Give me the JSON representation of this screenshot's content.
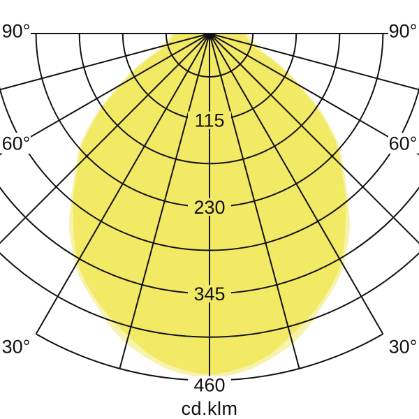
{
  "chart_data": {
    "type": "polar",
    "subtype": "photometric_light_distribution",
    "title": "",
    "unit_label": "cd.klm",
    "angle_step_deg": 15,
    "angle_labels": [
      {
        "deg": 90,
        "text": "90°"
      },
      {
        "deg": 60,
        "text": "60°"
      },
      {
        "deg": 30,
        "text": "30°"
      }
    ],
    "radial_ticks": {
      "minor_step": 57.5,
      "labeled": [
        115,
        230,
        345,
        460
      ],
      "max": 460
    },
    "series": [
      {
        "name": "distribution-outer-pale",
        "color": "#F7F2AC",
        "points_deg_cd_klm": [
          [
            90,
            50
          ],
          [
            80,
            58
          ],
          [
            71,
            75
          ],
          [
            67,
            97
          ],
          [
            63,
            121
          ],
          [
            59,
            147
          ],
          [
            56,
            174
          ],
          [
            52,
            205
          ],
          [
            49,
            229
          ],
          [
            45,
            251
          ],
          [
            42,
            271
          ],
          [
            39,
            293
          ],
          [
            36,
            317
          ],
          [
            32,
            342
          ],
          [
            29,
            362
          ],
          [
            25,
            380
          ],
          [
            22,
            393
          ],
          [
            19,
            409
          ],
          [
            15,
            426
          ],
          [
            11,
            438
          ],
          [
            7,
            449
          ],
          [
            2,
            456
          ],
          [
            0,
            456
          ]
        ]
      },
      {
        "name": "distribution-inner-bright",
        "color": "#F2E964",
        "points_deg_cd_klm": [
          [
            90,
            46
          ],
          [
            80,
            52
          ],
          [
            71,
            68
          ],
          [
            67,
            91
          ],
          [
            63,
            115
          ],
          [
            59,
            141
          ],
          [
            56,
            168
          ],
          [
            52,
            199
          ],
          [
            49,
            224
          ],
          [
            45,
            246
          ],
          [
            42,
            266
          ],
          [
            39,
            288
          ],
          [
            36,
            307
          ],
          [
            32,
            336
          ],
          [
            29,
            356
          ],
          [
            25,
            375
          ],
          [
            22,
            388
          ],
          [
            18,
            404
          ],
          [
            14,
            419
          ],
          [
            11,
            432
          ],
          [
            7,
            443
          ],
          [
            2,
            451
          ],
          [
            0,
            452
          ]
        ]
      }
    ],
    "colors": {
      "grid": "#111111",
      "text": "#111111",
      "background": "#FFFFFF"
    },
    "legend": "none"
  }
}
